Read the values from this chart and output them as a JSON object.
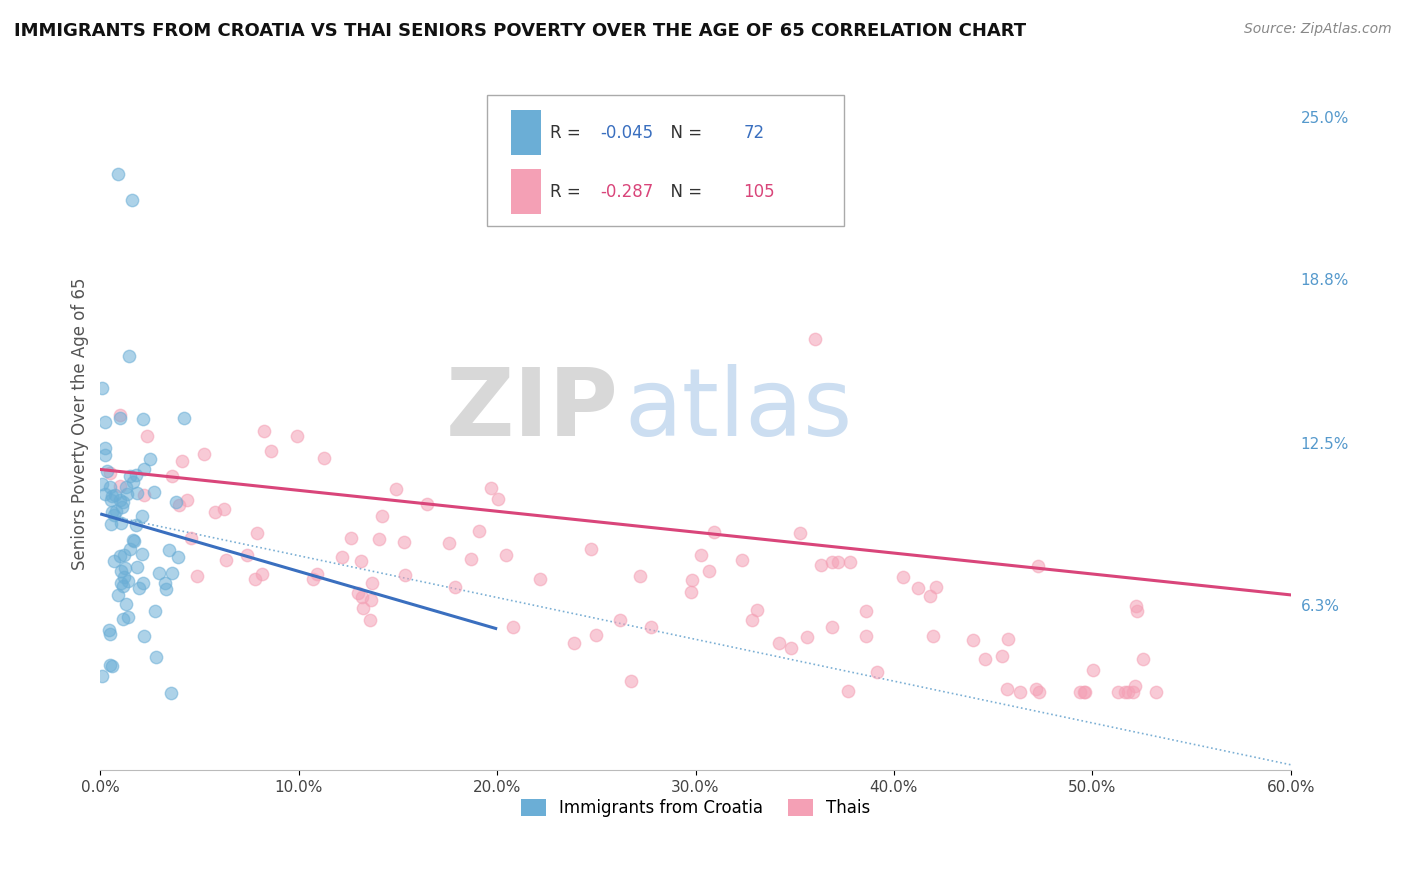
{
  "title": "IMMIGRANTS FROM CROATIA VS THAI SENIORS POVERTY OVER THE AGE OF 65 CORRELATION CHART",
  "source": "Source: ZipAtlas.com",
  "ylabel": "Seniors Poverty Over the Age of 65",
  "xlim": [
    0.0,
    0.6
  ],
  "ylim": [
    0.0,
    0.265
  ],
  "xticks": [
    0.0,
    0.1,
    0.2,
    0.3,
    0.4,
    0.5,
    0.6
  ],
  "xticklabels": [
    "0.0%",
    "10.0%",
    "20.0%",
    "30.0%",
    "40.0%",
    "50.0%",
    "60.0%"
  ],
  "ytick_right_vals": [
    0.063,
    0.125,
    0.188,
    0.25
  ],
  "ytick_right_labels": [
    "6.3%",
    "12.5%",
    "18.8%",
    "25.0%"
  ],
  "croatia_color": "#6baed6",
  "thai_color": "#f4a0b5",
  "croatia_line_color": "#3a6fbf",
  "thai_line_color": "#d9457a",
  "dash_line_color": "#7bafd4",
  "croatia_R": -0.045,
  "croatia_N": 72,
  "thai_R": -0.287,
  "thai_N": 105,
  "legend_label_croatia": "Immigrants from Croatia",
  "legend_label_thai": "Thais",
  "watermark_zip": "ZIP",
  "watermark_atlas": "atlas",
  "background_color": "#ffffff",
  "grid_color": "#dddddd",
  "title_fontsize": 13,
  "axis_tick_fontsize": 11
}
